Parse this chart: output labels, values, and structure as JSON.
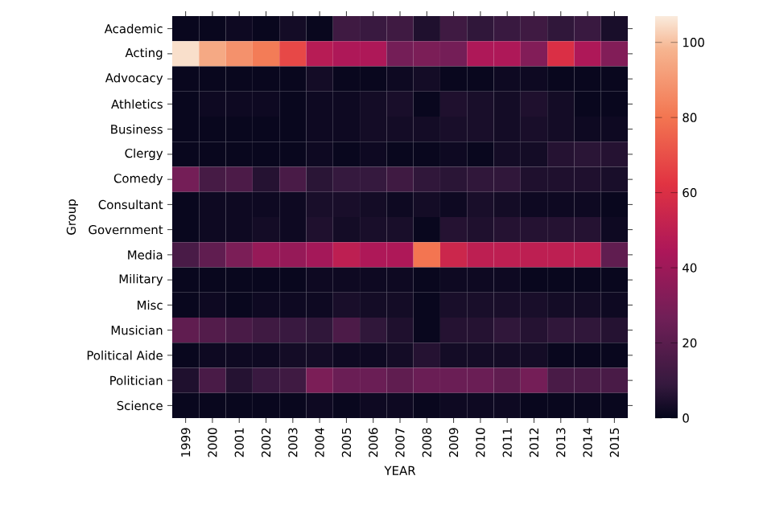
{
  "chart_data": {
    "type": "heatmap",
    "xlabel": "YEAR",
    "ylabel": "Group",
    "categories": [
      "1999",
      "2000",
      "2001",
      "2002",
      "2003",
      "2004",
      "2005",
      "2006",
      "2007",
      "2008",
      "2009",
      "2010",
      "2011",
      "2012",
      "2013",
      "2014",
      "2015"
    ],
    "y_categories": [
      "Academic",
      "Acting",
      "Advocacy",
      "Athletics",
      "Business",
      "Clergy",
      "Comedy",
      "Consultant",
      "Government",
      "Media",
      "Military",
      "Misc",
      "Musician",
      "Political Aide",
      "Politician",
      "Science"
    ],
    "cells": [
      [
        1,
        1,
        2,
        1,
        3,
        1,
        12,
        10,
        12,
        5,
        12,
        8,
        10,
        12,
        8,
        10,
        4
      ],
      [
        105,
        95,
        88,
        82,
        68,
        48,
        45,
        45,
        28,
        30,
        28,
        45,
        45,
        32,
        60,
        45,
        32
      ],
      [
        1,
        1,
        1,
        1,
        1,
        3,
        1,
        1,
        2,
        3,
        1,
        1,
        2,
        2,
        1,
        1,
        1
      ],
      [
        1,
        2,
        2,
        2,
        1,
        2,
        2,
        3,
        4,
        1,
        5,
        4,
        3,
        5,
        3,
        1,
        1
      ],
      [
        1,
        1,
        1,
        1,
        1,
        2,
        2,
        3,
        3,
        3,
        4,
        4,
        3,
        4,
        3,
        2,
        2
      ],
      [
        1,
        1,
        1,
        1,
        1,
        2,
        1,
        2,
        1,
        1,
        2,
        1,
        3,
        3,
        6,
        7,
        6
      ],
      [
        28,
        14,
        16,
        6,
        15,
        7,
        9,
        9,
        12,
        8,
        7,
        8,
        8,
        5,
        5,
        5,
        4
      ],
      [
        1,
        2,
        2,
        2,
        2,
        4,
        4,
        3,
        2,
        3,
        2,
        4,
        3,
        2,
        2,
        2,
        1
      ],
      [
        1,
        2,
        2,
        3,
        2,
        5,
        3,
        4,
        4,
        1,
        6,
        5,
        6,
        6,
        6,
        6,
        2
      ],
      [
        15,
        22,
        30,
        38,
        38,
        42,
        50,
        45,
        45,
        80,
        55,
        50,
        50,
        50,
        50,
        50,
        22
      ],
      [
        1,
        1,
        1,
        1,
        1,
        2,
        2,
        2,
        2,
        1,
        2,
        2,
        2,
        1,
        1,
        1,
        1
      ],
      [
        1,
        2,
        1,
        2,
        2,
        2,
        4,
        3,
        3,
        1,
        4,
        4,
        4,
        4,
        3,
        3,
        2
      ],
      [
        22,
        18,
        15,
        12,
        10,
        8,
        16,
        8,
        5,
        1,
        6,
        6,
        8,
        6,
        8,
        8,
        6
      ],
      [
        1,
        2,
        2,
        2,
        3,
        3,
        2,
        2,
        3,
        6,
        3,
        3,
        3,
        3,
        1,
        1,
        1
      ],
      [
        5,
        15,
        6,
        10,
        12,
        30,
        25,
        25,
        22,
        25,
        25,
        25,
        22,
        28,
        15,
        15,
        15
      ],
      [
        1,
        1,
        1,
        1,
        1,
        2,
        1,
        2,
        2,
        1,
        2,
        2,
        2,
        1,
        1,
        1,
        1
      ]
    ],
    "clim": [
      0,
      107
    ],
    "cticks": [
      0,
      20,
      40,
      60,
      80,
      100
    ]
  }
}
